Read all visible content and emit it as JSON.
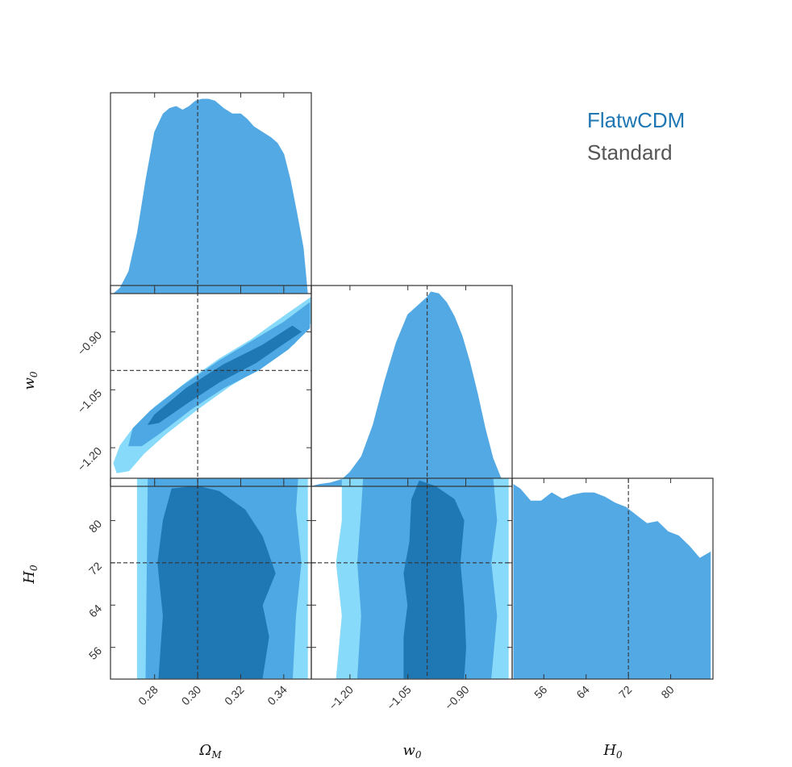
{
  "chart_data": {
    "type": "corner",
    "parameters": [
      {
        "name": "Ω",
        "sub": "M",
        "range": [
          0.2595,
          0.3528
        ],
        "ticks": [
          "0.28",
          "0.30",
          "0.32",
          "0.34"
        ],
        "tick_values": [
          0.28,
          0.3,
          0.32,
          0.34
        ],
        "truth": 0.3
      },
      {
        "name": "w",
        "sub": "0",
        "range": [
          -1.3,
          -0.78
        ],
        "ticks": [
          "−1.20",
          "−1.05",
          "−0.90"
        ],
        "tick_values": [
          -1.2,
          -1.05,
          -0.9
        ],
        "truth": -1.0
      },
      {
        "name": "H",
        "sub": "0",
        "range": [
          50,
          88
        ],
        "ticks": [
          "56",
          "64",
          "72",
          "80"
        ],
        "tick_values": [
          56,
          64,
          72,
          80
        ],
        "truth": 72
      }
    ],
    "legend": [
      {
        "label": "FlatwCDM",
        "color": "#1f77b4"
      },
      {
        "label": "Standard",
        "color": "#555555"
      }
    ],
    "colors": {
      "level_outer": "#87dafa",
      "level_mid": "#4ea8e3",
      "level_inner": "#1f78b4",
      "hist": "#53a9e4"
    },
    "marginals": [
      {
        "param": 0,
        "x": [
          0.261,
          0.264,
          0.268,
          0.272,
          0.276,
          0.28,
          0.284,
          0.287,
          0.29,
          0.293,
          0.296,
          0.299,
          0.302,
          0.305,
          0.308,
          0.312,
          0.316,
          0.32,
          0.323,
          0.326,
          0.33,
          0.334,
          0.337,
          0.34,
          0.343,
          0.346,
          0.349,
          0.351
        ],
        "density": [
          0.0,
          0.03,
          0.12,
          0.33,
          0.62,
          0.88,
          0.98,
          1.01,
          1.02,
          1.0,
          1.02,
          1.05,
          1.06,
          1.06,
          1.05,
          1.01,
          0.98,
          0.98,
          0.95,
          0.91,
          0.88,
          0.85,
          0.82,
          0.76,
          0.62,
          0.44,
          0.25,
          0.0
        ]
      },
      {
        "param": 1,
        "x": [
          -1.298,
          -1.28,
          -1.25,
          -1.22,
          -1.2,
          -1.17,
          -1.14,
          -1.11,
          -1.08,
          -1.05,
          -1.02,
          -1.0,
          -0.99,
          -0.97,
          -0.95,
          -0.93,
          -0.91,
          -0.89,
          -0.87,
          -0.85,
          -0.83,
          -0.81,
          -0.79
        ],
        "density": [
          0.0,
          0.01,
          0.02,
          0.04,
          0.08,
          0.17,
          0.35,
          0.6,
          0.82,
          0.98,
          1.04,
          1.08,
          1.11,
          1.1,
          1.05,
          0.97,
          0.86,
          0.71,
          0.53,
          0.33,
          0.16,
          0.05,
          0.0
        ]
      },
      {
        "param": 2,
        "x": [
          50.3,
          51.5,
          53.5,
          55.5,
          57.5,
          59.5,
          61.5,
          63.5,
          65.5,
          67.5,
          69.5,
          71.5,
          73.5,
          75.5,
          77.5,
          79.5,
          81.5,
          83.5,
          85.5,
          87.5
        ],
        "density": [
          0.95,
          0.93,
          0.87,
          0.87,
          0.91,
          0.88,
          0.9,
          0.91,
          0.91,
          0.89,
          0.86,
          0.84,
          0.8,
          0.76,
          0.77,
          0.72,
          0.7,
          0.65,
          0.59,
          0.62
        ]
      }
    ],
    "contours": [
      {
        "xparam": 0,
        "yparam": 1,
        "outer": [
          [
            0.2625,
            -1.265
          ],
          [
            0.261,
            -1.24
          ],
          [
            0.264,
            -1.195
          ],
          [
            0.27,
            -1.15
          ],
          [
            0.28,
            -1.095
          ],
          [
            0.295,
            -1.03
          ],
          [
            0.31,
            -0.97
          ],
          [
            0.325,
            -0.92
          ],
          [
            0.34,
            -0.86
          ],
          [
            0.3528,
            -0.81
          ],
          [
            0.3528,
            -0.875
          ],
          [
            0.345,
            -0.93
          ],
          [
            0.33,
            -0.99
          ],
          [
            0.315,
            -1.04
          ],
          [
            0.3,
            -1.1
          ],
          [
            0.285,
            -1.165
          ],
          [
            0.275,
            -1.215
          ],
          [
            0.268,
            -1.26
          ]
        ],
        "mid": [
          [
            0.268,
            -1.195
          ],
          [
            0.27,
            -1.15
          ],
          [
            0.278,
            -1.105
          ],
          [
            0.293,
            -1.04
          ],
          [
            0.31,
            -0.975
          ],
          [
            0.325,
            -0.925
          ],
          [
            0.34,
            -0.875
          ],
          [
            0.352,
            -0.825
          ],
          [
            0.352,
            -0.89
          ],
          [
            0.342,
            -0.945
          ],
          [
            0.328,
            -1.0
          ],
          [
            0.312,
            -1.045
          ],
          [
            0.297,
            -1.1
          ],
          [
            0.283,
            -1.16
          ],
          [
            0.274,
            -1.195
          ]
        ],
        "inner": [
          [
            0.277,
            -1.14
          ],
          [
            0.28,
            -1.115
          ],
          [
            0.295,
            -1.045
          ],
          [
            0.312,
            -0.985
          ],
          [
            0.33,
            -0.935
          ],
          [
            0.344,
            -0.885
          ],
          [
            0.348,
            -0.9
          ],
          [
            0.34,
            -0.93
          ],
          [
            0.327,
            -0.98
          ],
          [
            0.31,
            -1.03
          ],
          [
            0.295,
            -1.085
          ],
          [
            0.282,
            -1.135
          ]
        ]
      },
      {
        "xparam": 0,
        "yparam": 2,
        "outer": [
          [
            0.272,
            50.0
          ],
          [
            0.272,
            88.0
          ],
          [
            0.351,
            88.0
          ],
          [
            0.351,
            50.0
          ]
        ],
        "mid": [
          [
            0.276,
            50.2
          ],
          [
            0.277,
            88.0
          ],
          [
            0.3465,
            88.0
          ],
          [
            0.3455,
            82.0
          ],
          [
            0.348,
            72.0
          ],
          [
            0.3455,
            62.0
          ],
          [
            0.344,
            50.2
          ]
        ],
        "inner": [
          [
            0.282,
            50.2
          ],
          [
            0.284,
            62.0
          ],
          [
            0.2815,
            72.0
          ],
          [
            0.284,
            80.0
          ],
          [
            0.288,
            86.0
          ],
          [
            0.3,
            86.5
          ],
          [
            0.31,
            85.5
          ],
          [
            0.322,
            82.0
          ],
          [
            0.33,
            77.0
          ],
          [
            0.336,
            70.0
          ],
          [
            0.33,
            64.0
          ],
          [
            0.333,
            58.0
          ],
          [
            0.33,
            50.2
          ]
        ]
      },
      {
        "xparam": 1,
        "yparam": 2,
        "outer": [
          [
            -1.235,
            50.0
          ],
          [
            -1.22,
            62.0
          ],
          [
            -1.235,
            72.0
          ],
          [
            -1.22,
            80.0
          ],
          [
            -1.22,
            88.0
          ],
          [
            -0.79,
            88.0
          ],
          [
            -0.79,
            50.0
          ]
        ],
        "mid": [
          [
            -1.18,
            50.2
          ],
          [
            -1.17,
            62.0
          ],
          [
            -1.18,
            72.0
          ],
          [
            -1.17,
            82.0
          ],
          [
            -1.165,
            88.0
          ],
          [
            -0.83,
            88.0
          ],
          [
            -0.82,
            80.0
          ],
          [
            -0.835,
            72.0
          ],
          [
            -0.82,
            62.0
          ],
          [
            -0.835,
            50.2
          ]
        ],
        "inner": [
          [
            -1.06,
            50.2
          ],
          [
            -1.06,
            58.0
          ],
          [
            -1.05,
            64.0
          ],
          [
            -1.06,
            70.0
          ],
          [
            -1.045,
            76.0
          ],
          [
            -1.04,
            84.0
          ],
          [
            -1.02,
            87.5
          ],
          [
            -0.98,
            86.5
          ],
          [
            -0.93,
            84.0
          ],
          [
            -0.905,
            80.0
          ],
          [
            -0.915,
            72.0
          ],
          [
            -0.905,
            64.0
          ],
          [
            -0.9,
            56.0
          ],
          [
            -0.905,
            50.2
          ]
        ]
      }
    ]
  }
}
